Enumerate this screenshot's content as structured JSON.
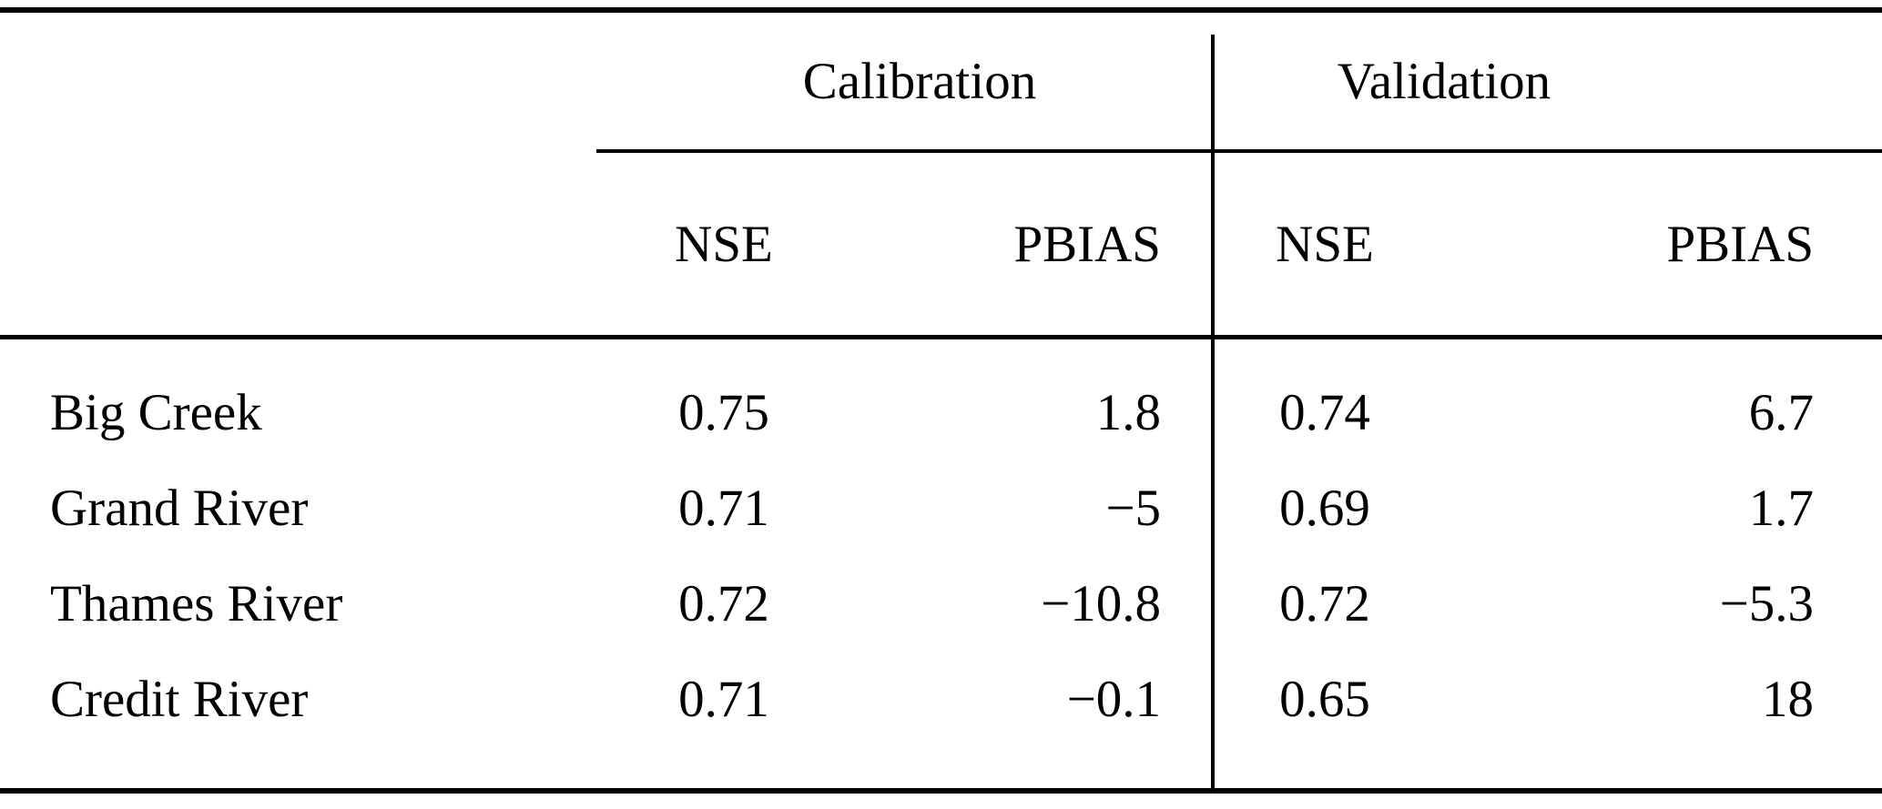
{
  "table": {
    "group_headers": {
      "calibration": "Calibration",
      "validation": "Validation"
    },
    "col_headers": {
      "cal_nse": "NSE",
      "cal_pbias": "PBIAS",
      "val_nse": "NSE",
      "val_pbias": "PBIAS"
    },
    "rows": [
      {
        "name": "Big Creek",
        "cal_nse": "0.75",
        "cal_pbias": "1.8",
        "val_nse": "0.74",
        "val_pbias": "6.7"
      },
      {
        "name": "Grand River",
        "cal_nse": "0.71",
        "cal_pbias": "−5",
        "val_nse": "0.69",
        "val_pbias": "1.7"
      },
      {
        "name": "Thames River",
        "cal_nse": "0.72",
        "cal_pbias": "−10.8",
        "val_nse": "0.72",
        "val_pbias": "−5.3"
      },
      {
        "name": "Credit River",
        "cal_nse": "0.71",
        "cal_pbias": "−0.1",
        "val_nse": "0.65",
        "val_pbias": "18"
      }
    ],
    "colors": {
      "rule": "#000000",
      "background": "#ffffff",
      "text": "#000000"
    }
  }
}
